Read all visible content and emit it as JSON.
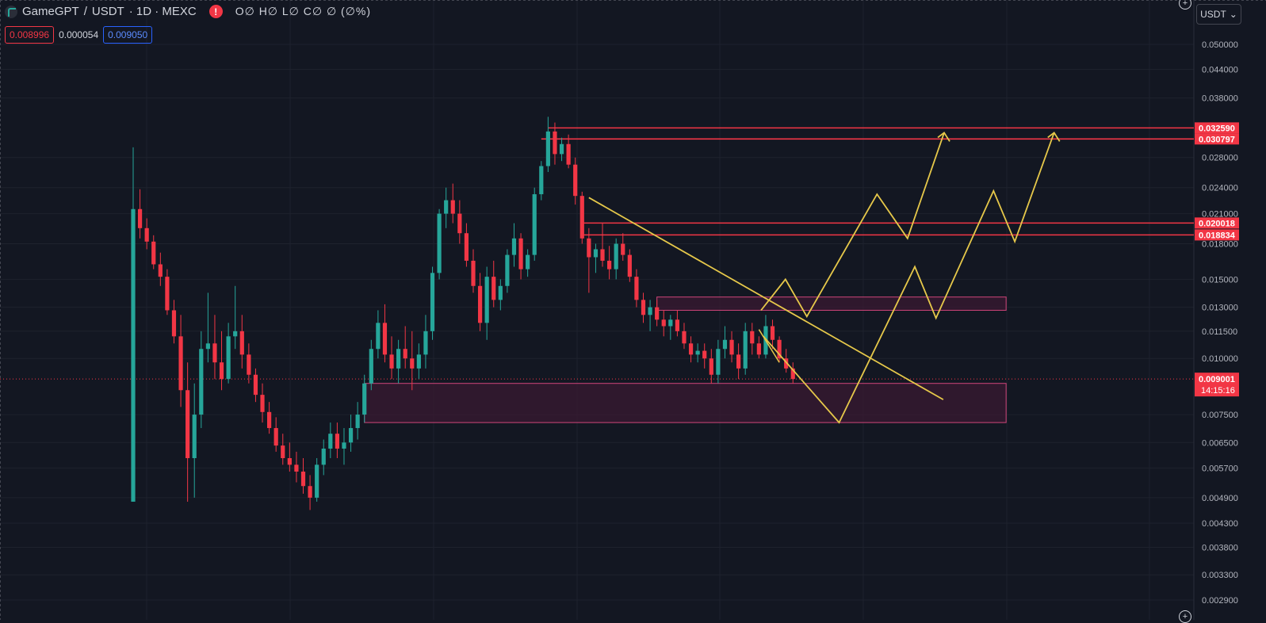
{
  "legend": {
    "symbol": "GameGPT",
    "separator": "/",
    "quote": "USDT",
    "timeframe_exchange": "· 1D · MEXC",
    "warning": "!",
    "ohlc": "O∅ H∅ L∅ C∅ ∅ (∅%)",
    "bid": "0.008996",
    "spread": "0.000054",
    "ask": "0.009050"
  },
  "currency_button": {
    "label": "USDT",
    "chevron": "chevron-down-icon"
  },
  "colors": {
    "background": "#131722",
    "grid": "#1e222d",
    "up": "#26a69a",
    "down": "#f23645",
    "level_lines": "#f23645",
    "zone_border": "#d0457a",
    "zone_fill": "#3a1a32",
    "projection": "#e6c84a",
    "axis_text": "#b2b5be"
  },
  "chart_data": {
    "type": "candlestick",
    "scale": "log",
    "y_ticks": [
      "0.050000",
      "0.044000",
      "0.038000",
      "0.028000",
      "0.024000",
      "0.021000",
      "0.018000",
      "0.015000",
      "0.013000",
      "0.011500",
      "0.010000",
      "0.007500",
      "0.006500",
      "0.005700",
      "0.004900",
      "0.004300",
      "0.003800",
      "0.003300",
      "0.002900"
    ],
    "price_labels": [
      {
        "text": "0.032590",
        "value": 0.03259
      },
      {
        "text": "0.030797",
        "value": 0.030797
      },
      {
        "text": "0.020018",
        "value": 0.020018
      },
      {
        "text": "0.018834",
        "value": 0.018834
      }
    ],
    "current_price": {
      "text": "0.009001",
      "value": 0.009001,
      "countdown": "14:15:16"
    },
    "candles_ohlc": [
      [
        0.0048,
        0.0295,
        0.0048,
        0.0215
      ],
      [
        0.0215,
        0.0238,
        0.0185,
        0.0195
      ],
      [
        0.0195,
        0.0205,
        0.0175,
        0.0182
      ],
      [
        0.0182,
        0.0188,
        0.0158,
        0.0162
      ],
      [
        0.0162,
        0.0172,
        0.0145,
        0.0152
      ],
      [
        0.0152,
        0.0158,
        0.0125,
        0.0128
      ],
      [
        0.0128,
        0.0135,
        0.0108,
        0.0112
      ],
      [
        0.0112,
        0.0125,
        0.0078,
        0.0085
      ],
      [
        0.0085,
        0.0098,
        0.0048,
        0.006
      ],
      [
        0.006,
        0.0088,
        0.0049,
        0.0075
      ],
      [
        0.0075,
        0.0115,
        0.007,
        0.0105
      ],
      [
        0.0105,
        0.014,
        0.0098,
        0.0108
      ],
      [
        0.0108,
        0.0125,
        0.009,
        0.0098
      ],
      [
        0.0098,
        0.0115,
        0.0085,
        0.009
      ],
      [
        0.009,
        0.012,
        0.0088,
        0.0112
      ],
      [
        0.0112,
        0.0145,
        0.0105,
        0.0115
      ],
      [
        0.0115,
        0.0125,
        0.0095,
        0.0102
      ],
      [
        0.0102,
        0.0108,
        0.0088,
        0.0092
      ],
      [
        0.0092,
        0.0095,
        0.008,
        0.0083
      ],
      [
        0.0083,
        0.0088,
        0.0072,
        0.0076
      ],
      [
        0.0076,
        0.008,
        0.0068,
        0.007
      ],
      [
        0.007,
        0.0074,
        0.0062,
        0.0064
      ],
      [
        0.0064,
        0.0068,
        0.0058,
        0.006
      ],
      [
        0.006,
        0.0065,
        0.0056,
        0.0058
      ],
      [
        0.0058,
        0.0062,
        0.0053,
        0.0056
      ],
      [
        0.0056,
        0.006,
        0.005,
        0.0052
      ],
      [
        0.0052,
        0.0055,
        0.0046,
        0.0049
      ],
      [
        0.0049,
        0.006,
        0.0048,
        0.0058
      ],
      [
        0.0058,
        0.0066,
        0.0055,
        0.0063
      ],
      [
        0.0063,
        0.0072,
        0.006,
        0.0068
      ],
      [
        0.0068,
        0.0072,
        0.006,
        0.0063
      ],
      [
        0.0063,
        0.007,
        0.0058,
        0.0065
      ],
      [
        0.0065,
        0.0075,
        0.0062,
        0.007
      ],
      [
        0.007,
        0.008,
        0.0066,
        0.0075
      ],
      [
        0.0075,
        0.0092,
        0.0072,
        0.0088
      ],
      [
        0.0088,
        0.011,
        0.0085,
        0.0105
      ],
      [
        0.0105,
        0.0128,
        0.01,
        0.012
      ],
      [
        0.012,
        0.0132,
        0.0098,
        0.0102
      ],
      [
        0.0102,
        0.0112,
        0.009,
        0.0095
      ],
      [
        0.0095,
        0.011,
        0.0088,
        0.0105
      ],
      [
        0.0105,
        0.0118,
        0.0095,
        0.01
      ],
      [
        0.01,
        0.0115,
        0.0085,
        0.0095
      ],
      [
        0.0095,
        0.0108,
        0.009,
        0.0102
      ],
      [
        0.0102,
        0.0125,
        0.0095,
        0.0115
      ],
      [
        0.0115,
        0.016,
        0.011,
        0.0155
      ],
      [
        0.0155,
        0.0215,
        0.015,
        0.021
      ],
      [
        0.021,
        0.024,
        0.0195,
        0.0225
      ],
      [
        0.0225,
        0.0245,
        0.02,
        0.021
      ],
      [
        0.021,
        0.0225,
        0.018,
        0.019
      ],
      [
        0.019,
        0.02,
        0.016,
        0.0165
      ],
      [
        0.0165,
        0.0175,
        0.014,
        0.0145
      ],
      [
        0.0145,
        0.0155,
        0.0115,
        0.012
      ],
      [
        0.012,
        0.016,
        0.011,
        0.0152
      ],
      [
        0.0152,
        0.0165,
        0.013,
        0.0135
      ],
      [
        0.0135,
        0.015,
        0.0128,
        0.0145
      ],
      [
        0.0145,
        0.0175,
        0.014,
        0.017
      ],
      [
        0.017,
        0.02,
        0.016,
        0.0185
      ],
      [
        0.0185,
        0.019,
        0.015,
        0.0158
      ],
      [
        0.0158,
        0.0175,
        0.0152,
        0.017
      ],
      [
        0.017,
        0.024,
        0.0165,
        0.0232
      ],
      [
        0.0232,
        0.0275,
        0.0225,
        0.0268
      ],
      [
        0.0268,
        0.0345,
        0.026,
        0.032
      ],
      [
        0.032,
        0.0335,
        0.027,
        0.0285
      ],
      [
        0.0285,
        0.031,
        0.0275,
        0.03
      ],
      [
        0.03,
        0.0315,
        0.0265,
        0.027
      ],
      [
        0.027,
        0.028,
        0.022,
        0.023
      ],
      [
        0.023,
        0.0235,
        0.018,
        0.0185
      ],
      [
        0.0185,
        0.0195,
        0.014,
        0.0168
      ],
      [
        0.0168,
        0.018,
        0.0155,
        0.0175
      ],
      [
        0.0175,
        0.02,
        0.016,
        0.0165
      ],
      [
        0.0165,
        0.0178,
        0.015,
        0.0158
      ],
      [
        0.0158,
        0.0185,
        0.015,
        0.018
      ],
      [
        0.018,
        0.019,
        0.0165,
        0.017
      ],
      [
        0.017,
        0.0175,
        0.0148,
        0.0152
      ],
      [
        0.0152,
        0.0158,
        0.013,
        0.0135
      ],
      [
        0.0135,
        0.014,
        0.012,
        0.0125
      ],
      [
        0.0125,
        0.0135,
        0.0115,
        0.013
      ],
      [
        0.013,
        0.0135,
        0.0118,
        0.0122
      ],
      [
        0.0122,
        0.0128,
        0.0112,
        0.0118
      ],
      [
        0.0118,
        0.0125,
        0.011,
        0.0122
      ],
      [
        0.0122,
        0.0128,
        0.0112,
        0.0115
      ],
      [
        0.0115,
        0.012,
        0.0105,
        0.0108
      ],
      [
        0.0108,
        0.0112,
        0.0098,
        0.0102
      ],
      [
        0.0102,
        0.0108,
        0.0098,
        0.0104
      ],
      [
        0.0104,
        0.0108,
        0.0095,
        0.01
      ],
      [
        0.01,
        0.0105,
        0.0088,
        0.0092
      ],
      [
        0.0092,
        0.011,
        0.0088,
        0.0105
      ],
      [
        0.0105,
        0.0118,
        0.01,
        0.011
      ],
      [
        0.011,
        0.0115,
        0.0098,
        0.0102
      ],
      [
        0.0102,
        0.0108,
        0.009,
        0.0095
      ],
      [
        0.0095,
        0.012,
        0.0092,
        0.0115
      ],
      [
        0.0115,
        0.012,
        0.0102,
        0.0108
      ],
      [
        0.0108,
        0.0112,
        0.01,
        0.0102
      ],
      [
        0.0102,
        0.0125,
        0.01,
        0.0118
      ],
      [
        0.0118,
        0.0122,
        0.0105,
        0.011
      ],
      [
        0.011,
        0.0112,
        0.0098,
        0.01
      ],
      [
        0.01,
        0.0105,
        0.0093,
        0.0095
      ],
      [
        0.0095,
        0.0098,
        0.0088,
        0.009
      ]
    ],
    "levels": [
      {
        "name": "level-0-032590",
        "value": 0.03259,
        "from_index": 61
      },
      {
        "name": "level-0-030797",
        "value": 0.030797,
        "from_index": 60
      },
      {
        "name": "level-0-020018",
        "value": 0.020018,
        "from_index": 66
      },
      {
        "name": "level-0-018834",
        "value": 0.018834,
        "from_index": 66
      }
    ],
    "zones": [
      {
        "name": "demand-zone",
        "top": 0.0088,
        "bottom": 0.0072,
        "from_index": 34,
        "to_future": 0.78
      },
      {
        "name": "resistance-zone",
        "top": 0.0137,
        "bottom": 0.0128,
        "from_index": 77,
        "to_future": 0.78
      }
    ],
    "trendline": {
      "from_index": 67,
      "from_value": 0.0228,
      "to_future": 0.55,
      "to_value": 0.0081
    },
    "short_trendline": {
      "from_index": 92,
      "from_value": 0.0116,
      "to_index": 95,
      "to_value": 0.0098
    },
    "projections": [
      [
        [
          0.0,
          0.0128
        ],
        [
          0.08,
          0.015
        ],
        [
          0.15,
          0.0124
        ],
        [
          0.38,
          0.0232
        ],
        [
          0.48,
          0.0185
        ],
        [
          0.6,
          0.0318
        ],
        [
          0.62,
          0.031
        ]
      ],
      [
        [
          0.0,
          0.0112
        ],
        [
          0.25,
          0.0072
        ],
        [
          0.5,
          0.016
        ],
        [
          0.57,
          0.0123
        ],
        [
          0.76,
          0.0236
        ],
        [
          0.83,
          0.0182
        ],
        [
          0.96,
          0.0318
        ],
        [
          0.98,
          0.031
        ]
      ]
    ]
  }
}
